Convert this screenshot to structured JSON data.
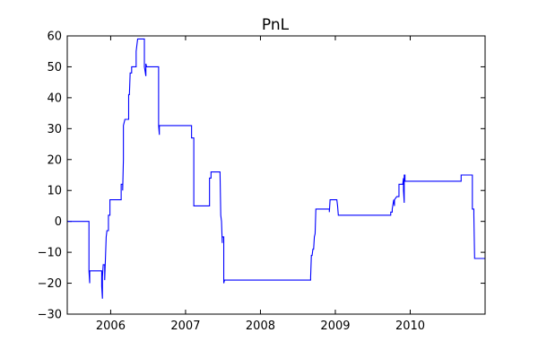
{
  "chart_data": {
    "type": "line",
    "title": "PnL",
    "xlabel": "",
    "ylabel": "",
    "xlim": [
      2005.42,
      2011.0
    ],
    "ylim": [
      -30,
      60
    ],
    "grid": false,
    "legend": "none",
    "x_ticks": [
      {
        "value": 2006,
        "label": "2006"
      },
      {
        "value": 2007,
        "label": "2007"
      },
      {
        "value": 2008,
        "label": "2008"
      },
      {
        "value": 2009,
        "label": "2009"
      },
      {
        "value": 2010,
        "label": "2010"
      }
    ],
    "y_ticks": [
      {
        "value": 60,
        "label": "60"
      },
      {
        "value": 50,
        "label": "50"
      },
      {
        "value": 40,
        "label": "40"
      },
      {
        "value": 30,
        "label": "30"
      },
      {
        "value": 20,
        "label": "20"
      },
      {
        "value": 10,
        "label": "10"
      },
      {
        "value": 0,
        "label": "0"
      },
      {
        "value": -10,
        "label": "−10"
      },
      {
        "value": -20,
        "label": "−20"
      },
      {
        "value": -30,
        "label": "−30"
      }
    ],
    "series": [
      {
        "name": "PnL",
        "color": "#0000ff",
        "points": [
          [
            2005.42,
            0
          ],
          [
            2005.71,
            0
          ],
          [
            2005.71,
            -16
          ],
          [
            2005.72,
            -20
          ],
          [
            2005.72,
            -16
          ],
          [
            2005.88,
            -16
          ],
          [
            2005.88,
            -21
          ],
          [
            2005.89,
            -25
          ],
          [
            2005.89,
            -18
          ],
          [
            2005.9,
            -14
          ],
          [
            2005.92,
            -14
          ],
          [
            2005.92,
            -19
          ],
          [
            2005.93,
            -12
          ],
          [
            2005.94,
            -5
          ],
          [
            2005.95,
            -3
          ],
          [
            2005.97,
            -3
          ],
          [
            2005.97,
            2
          ],
          [
            2005.99,
            2
          ],
          [
            2005.99,
            7
          ],
          [
            2006.14,
            7
          ],
          [
            2006.14,
            12
          ],
          [
            2006.16,
            12
          ],
          [
            2006.16,
            10
          ],
          [
            2006.17,
            20
          ],
          [
            2006.17,
            31
          ],
          [
            2006.18,
            32
          ],
          [
            2006.19,
            33
          ],
          [
            2006.24,
            33
          ],
          [
            2006.24,
            41
          ],
          [
            2006.25,
            41
          ],
          [
            2006.26,
            48
          ],
          [
            2006.28,
            48
          ],
          [
            2006.28,
            50
          ],
          [
            2006.34,
            50
          ],
          [
            2006.34,
            55
          ],
          [
            2006.36,
            59
          ],
          [
            2006.45,
            59
          ],
          [
            2006.45,
            50
          ],
          [
            2006.47,
            47
          ],
          [
            2006.47,
            51
          ],
          [
            2006.48,
            50
          ],
          [
            2006.64,
            50
          ],
          [
            2006.64,
            31
          ],
          [
            2006.65,
            28
          ],
          [
            2006.65,
            31
          ],
          [
            2007.08,
            31
          ],
          [
            2007.08,
            27
          ],
          [
            2007.11,
            27
          ],
          [
            2007.11,
            5
          ],
          [
            2007.32,
            5
          ],
          [
            2007.32,
            14
          ],
          [
            2007.34,
            14
          ],
          [
            2007.34,
            16
          ],
          [
            2007.46,
            16
          ],
          [
            2007.47,
            2
          ],
          [
            2007.48,
            0
          ],
          [
            2007.49,
            -7
          ],
          [
            2007.49,
            -5
          ],
          [
            2007.51,
            -5
          ],
          [
            2007.51,
            -20
          ],
          [
            2007.52,
            -19
          ],
          [
            2008.67,
            -19
          ],
          [
            2008.67,
            -18
          ],
          [
            2008.68,
            -11
          ],
          [
            2008.69,
            -11
          ],
          [
            2008.7,
            -9
          ],
          [
            2008.71,
            -9
          ],
          [
            2008.72,
            -5
          ],
          [
            2008.73,
            -4
          ],
          [
            2008.74,
            4
          ],
          [
            2008.92,
            4
          ],
          [
            2008.92,
            3
          ],
          [
            2008.93,
            7
          ],
          [
            2009.02,
            7
          ],
          [
            2009.03,
            5
          ],
          [
            2009.04,
            2
          ],
          [
            2009.74,
            2
          ],
          [
            2009.74,
            3
          ],
          [
            2009.76,
            3
          ],
          [
            2009.76,
            4
          ],
          [
            2009.78,
            7
          ],
          [
            2009.79,
            5
          ],
          [
            2009.79,
            7
          ],
          [
            2009.82,
            8
          ],
          [
            2009.85,
            8
          ],
          [
            2009.85,
            12
          ],
          [
            2009.9,
            12
          ],
          [
            2009.91,
            14
          ],
          [
            2009.91,
            10
          ],
          [
            2009.92,
            6
          ],
          [
            2009.92,
            15
          ],
          [
            2009.93,
            15
          ],
          [
            2009.93,
            13
          ],
          [
            2010.68,
            13
          ],
          [
            2010.68,
            15
          ],
          [
            2010.83,
            15
          ],
          [
            2010.83,
            4
          ],
          [
            2010.85,
            4
          ],
          [
            2010.85,
            2
          ],
          [
            2010.86,
            -12
          ],
          [
            2011.0,
            -12
          ]
        ]
      }
    ]
  }
}
